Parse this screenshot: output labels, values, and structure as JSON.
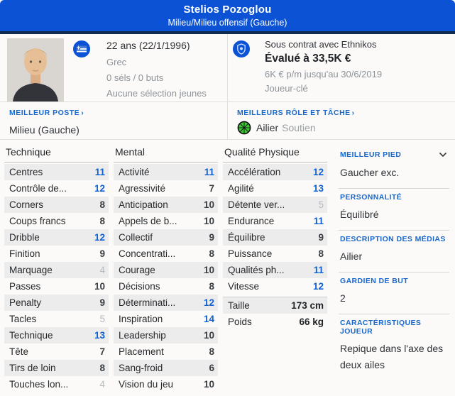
{
  "header": {
    "player_name": "Stelios Pozoglou",
    "position_line": "Milieu/Milieu offensif (Gauche)"
  },
  "profile": {
    "age_line": "22 ans (22/1/1996)",
    "nationality": "Grec",
    "caps_goals": "0 séls / 0 buts",
    "youth_caps": "Aucune sélection jeunes",
    "contract_line": "Sous contrat avec Ethnikos",
    "value_line": "Évalué à 33,5K €",
    "wage_line": "6K € p/m jusqu'au 30/6/2019",
    "squad_status": "Joueur-clé"
  },
  "icons": {
    "flag": "greece-flag-icon",
    "club": "club-badge-icon",
    "role": "role-duty-wheel-icon",
    "chevron_right": "›",
    "chevron_down": "⌄"
  },
  "best_position": {
    "label": "MEILLEUR POSTE",
    "chevron": "›",
    "value": "Milieu (Gauche)"
  },
  "best_role": {
    "label": "MEILLEURS RÔLE ET TÂCHE",
    "chevron": "›",
    "role": "Ailier",
    "duty": "Soutien",
    "role_icon_color": "#3fc835"
  },
  "attribute_columns": [
    {
      "header": "Technique",
      "rows": [
        {
          "name": "Centres",
          "value": 11
        },
        {
          "name": "Contrôle de...",
          "value": 12
        },
        {
          "name": "Corners",
          "value": 8
        },
        {
          "name": "Coups francs",
          "value": 8
        },
        {
          "name": "Dribble",
          "value": 12
        },
        {
          "name": "Finition",
          "value": 9
        },
        {
          "name": "Marquage",
          "value": 4
        },
        {
          "name": "Passes",
          "value": 10
        },
        {
          "name": "Penalty",
          "value": 9
        },
        {
          "name": "Tacles",
          "value": 5
        },
        {
          "name": "Technique",
          "value": 13
        },
        {
          "name": "Tête",
          "value": 7
        },
        {
          "name": "Tirs de loin",
          "value": 8
        },
        {
          "name": "Touches lon...",
          "value": 4
        }
      ]
    },
    {
      "header": "Mental",
      "rows": [
        {
          "name": "Activité",
          "value": 11
        },
        {
          "name": "Agressivité",
          "value": 7
        },
        {
          "name": "Anticipation",
          "value": 10
        },
        {
          "name": "Appels de b...",
          "value": 10
        },
        {
          "name": "Collectif",
          "value": 9
        },
        {
          "name": "Concentrati...",
          "value": 8
        },
        {
          "name": "Courage",
          "value": 10
        },
        {
          "name": "Décisions",
          "value": 8
        },
        {
          "name": "Déterminati...",
          "value": 12
        },
        {
          "name": "Inspiration",
          "value": 14
        },
        {
          "name": "Leadership",
          "value": 10
        },
        {
          "name": "Placement",
          "value": 8
        },
        {
          "name": "Sang-froid",
          "value": 6
        },
        {
          "name": "Vision du jeu",
          "value": 10
        }
      ]
    },
    {
      "header": "Qualité Physique",
      "rows": [
        {
          "name": "Accélération",
          "value": 12
        },
        {
          "name": "Agilité",
          "value": 13
        },
        {
          "name": "Détente ver...",
          "value": 5
        },
        {
          "name": "Endurance",
          "value": 11
        },
        {
          "name": "Équilibre",
          "value": 9
        },
        {
          "name": "Puissance",
          "value": 8
        },
        {
          "name": "Qualités ph...",
          "value": 11
        },
        {
          "name": "Vitesse",
          "value": 12
        }
      ],
      "measures": [
        {
          "name": "Taille",
          "value": "173 cm"
        },
        {
          "name": "Poids",
          "value": "66 kg"
        }
      ]
    }
  ],
  "sidebar": {
    "sections": [
      {
        "label": "MEILLEUR PIED",
        "value": "Gaucher exc.",
        "expandable": true
      },
      {
        "label": "PERSONNALITÉ",
        "value": "Équilibré"
      },
      {
        "label": "DESCRIPTION DES MÉDIAS",
        "value": "Ailier"
      },
      {
        "label": "GARDIEN DE BUT",
        "value": "2"
      },
      {
        "label": "CARACTÉRISTIQUES JOUEUR",
        "value": "Repique dans l'axe des deux ailes"
      }
    ]
  },
  "colors": {
    "header_bg": "#0c52d4",
    "header_strip": "#0f2b50",
    "accent_blue": "#1a68cb",
    "value_high": "#0f62d6",
    "value_low": "#b5bac0",
    "text_dark": "#2f3237",
    "text_gray": "#8d9399",
    "row_stripe": "#ececec",
    "role_green": "#3fc835"
  }
}
